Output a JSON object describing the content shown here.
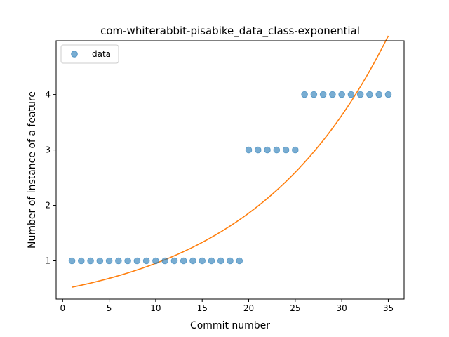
{
  "chart_data": {
    "type": "scatter",
    "title": "com-whiterabbit-pisabike_data_class-exponential",
    "xlabel": "Commit number",
    "ylabel": "Number of instance of a feature",
    "xlim": [
      -0.7,
      36.7
    ],
    "ylim": [
      0.31,
      4.97
    ],
    "x_ticks": [
      0,
      5,
      10,
      15,
      20,
      25,
      30,
      35
    ],
    "y_ticks": [
      1,
      2,
      3,
      4
    ],
    "grid": false,
    "legend": {
      "placement": "top-left",
      "entries": [
        "data"
      ]
    },
    "series": [
      {
        "name": "data",
        "kind": "scatter",
        "color": "#1f77b4",
        "x": [
          1,
          2,
          3,
          4,
          5,
          6,
          7,
          8,
          9,
          10,
          11,
          12,
          13,
          14,
          15,
          16,
          17,
          18,
          19,
          20,
          21,
          22,
          23,
          24,
          25,
          26,
          27,
          28,
          29,
          30,
          31,
          32,
          33,
          34,
          35
        ],
        "y": [
          1,
          1,
          1,
          1,
          1,
          1,
          1,
          1,
          1,
          1,
          1,
          1,
          1,
          1,
          1,
          1,
          1,
          1,
          1,
          3,
          3,
          3,
          3,
          3,
          3,
          4,
          4,
          4,
          4,
          4,
          4,
          4,
          4,
          4,
          4
        ]
      },
      {
        "kind": "line",
        "color": "#ff7f0e",
        "fit": {
          "model": "exponential",
          "a": 0.49,
          "b": 0.0667
        }
      }
    ]
  }
}
